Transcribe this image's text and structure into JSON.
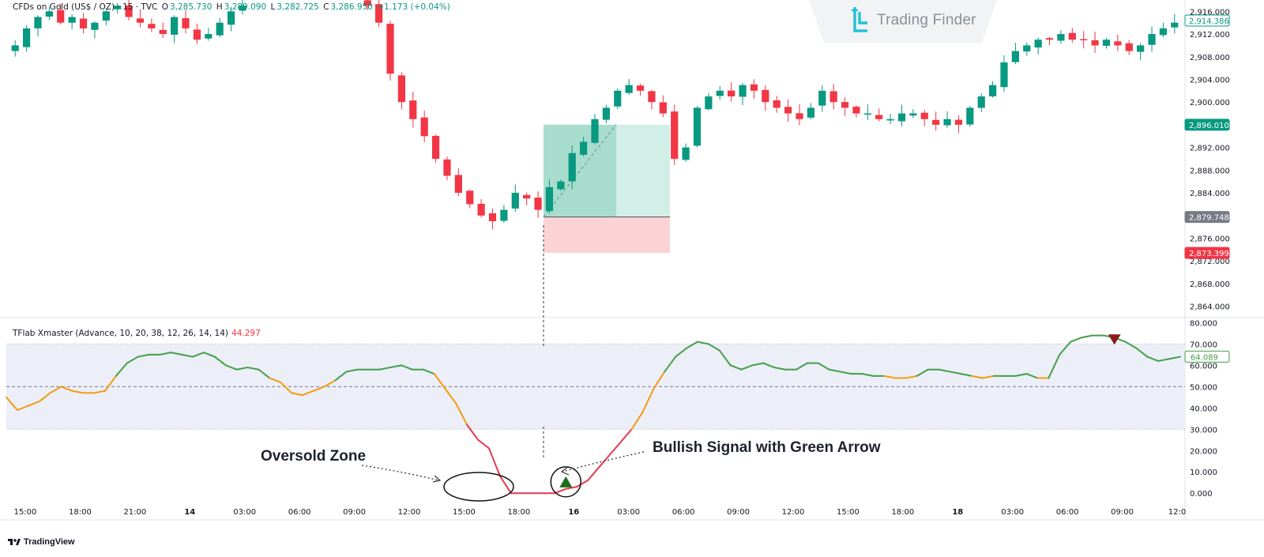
{
  "header": {
    "symbol": "CFDs on Gold (US$ / OZ) · 15 · TVC",
    "open_label": "O",
    "open": "3,285.730",
    "high_label": "H",
    "high": "3,289.090",
    "low_label": "L",
    "low": "3,282.725",
    "close_label": "C",
    "close": "3,286.950",
    "change": "+1.173 (+0.04%)"
  },
  "brand": {
    "name": "Trading Finder"
  },
  "price_axis": {
    "ticks": [
      "2,916.000",
      "2,912.000",
      "2,908.000",
      "2,904.000",
      "2,900.000",
      "2,896.000",
      "2,892.000",
      "2,888.000",
      "2,884.000",
      "2,880.000",
      "2,876.000",
      "2,872.000",
      "2,868.000",
      "2,864.000"
    ],
    "tick_values": [
      2916,
      2912,
      2908,
      2904,
      2900,
      2896,
      2892,
      2888,
      2884,
      2880,
      2876,
      2872,
      2868,
      2864
    ],
    "badges": [
      {
        "text": "2,914.386",
        "value": 2914.386,
        "kind": "outline-green"
      },
      {
        "text": "2,896.010",
        "value": 2896.01,
        "kind": "green"
      },
      {
        "text": "2,879.748",
        "value": 2879.748,
        "kind": "gray"
      },
      {
        "text": "2,873.399",
        "value": 2873.399,
        "kind": "red"
      }
    ]
  },
  "indicator": {
    "title": "TFlab Xmaster (Advance, 10, 20, 38, 12, 26, 14, 14)",
    "value": "44.297",
    "ticks": [
      "80.000",
      "70.000",
      "60.000",
      "50.000",
      "40.000",
      "30.000",
      "20.000",
      "10.000",
      "0.000"
    ],
    "tick_values": [
      80,
      70,
      60,
      50,
      40,
      30,
      20,
      10,
      0
    ],
    "badge": {
      "text": "64.089",
      "value": 64.089
    },
    "band": [
      30,
      70
    ],
    "midline": 50
  },
  "time_axis": {
    "labels": [
      "15:00",
      "18:00",
      "21:00",
      "14",
      "03:00",
      "06:00",
      "09:00",
      "12:00",
      "15:00",
      "18:00",
      "16",
      "03:00",
      "06:00",
      "09:00",
      "12:00",
      "15:00",
      "18:00",
      "18",
      "03:00",
      "06:00",
      "09:00",
      "12:0"
    ],
    "bold": [
      "14",
      "16",
      "18"
    ]
  },
  "annotations": {
    "oversold": "Oversold Zone",
    "bullish": "Bullish Signal with Green Arrow"
  },
  "footer": {
    "label": "TradingView"
  },
  "colors": {
    "up": "#089981",
    "down": "#f23645",
    "line_green": "#43a047",
    "line_orange": "#f39c12",
    "line_red": "#e53950",
    "band": "#eceef8",
    "tp_zone": "#a8dccc",
    "sl_zone": "#fbd3d6"
  },
  "chart_data": [
    {
      "type": "candlestick",
      "title": "CFDs on Gold (US$ / OZ) · 15 · TVC",
      "ylim": [
        2862,
        2918
      ],
      "price_close_path": [
        2910,
        2913,
        2915,
        2916,
        2914,
        2915,
        2913,
        2914,
        2916,
        2917,
        2915,
        2914,
        2913,
        2912,
        2915,
        2913,
        2911,
        2912,
        2914,
        2916,
        2917,
        2918,
        2918,
        2918,
        2918,
        2918,
        2918,
        2918,
        2918,
        2918,
        2918,
        2917,
        2914,
        2905,
        2900,
        2897,
        2894,
        2890,
        2887,
        2884,
        2882,
        2880,
        2879,
        2881,
        2884,
        2883,
        2881,
        2885,
        2886,
        2891,
        2893,
        2897,
        2899,
        2902,
        2903,
        2902,
        2900,
        2898,
        2890,
        2892,
        2899,
        2901,
        2902,
        2901,
        2903,
        2902,
        2900,
        2899,
        2898,
        2897,
        2899,
        2902,
        2900,
        2899,
        2898,
        2898,
        2897,
        2897,
        2898,
        2898,
        2897,
        2896,
        2897,
        2896,
        2899,
        2901,
        2903,
        2907,
        2909,
        2910,
        2911,
        2911,
        2912,
        2911,
        2911,
        2910,
        2911,
        2910,
        2909,
        2910,
        2912,
        2913,
        2914
      ],
      "position": {
        "entry": 2879.748,
        "take_profit": 2896.01,
        "stop_loss": 2873.399
      }
    },
    {
      "type": "line",
      "title": "TFlab Xmaster (Advance, 10, 20, 38, 12, 26, 14, 14)",
      "ylim": [
        -4,
        82
      ],
      "values": [
        45,
        39,
        41,
        43,
        47,
        50,
        48,
        47,
        47,
        48,
        55,
        61,
        64,
        65,
        65,
        66,
        65,
        64,
        66,
        64,
        60,
        58,
        59,
        58,
        54,
        52,
        47,
        46,
        48,
        50,
        53,
        57,
        58,
        58,
        58,
        59,
        60,
        58,
        58,
        56,
        49,
        42,
        32,
        25,
        21,
        8,
        0,
        0,
        0,
        0,
        0,
        2,
        3,
        6,
        12,
        18,
        24,
        30,
        38,
        49,
        57,
        64,
        68,
        71,
        70,
        67,
        60,
        58,
        60,
        61,
        59,
        58,
        58,
        61,
        61,
        58,
        57,
        56,
        56,
        55,
        55,
        54,
        54,
        55,
        58,
        58,
        57,
        56,
        55,
        54,
        55,
        55,
        55,
        56,
        54,
        54,
        65,
        71,
        73,
        74,
        74,
        73,
        71,
        68,
        64,
        62,
        63,
        64
      ],
      "bullish_arrow_index": 51,
      "bearish_arrow_index": 101
    }
  ]
}
